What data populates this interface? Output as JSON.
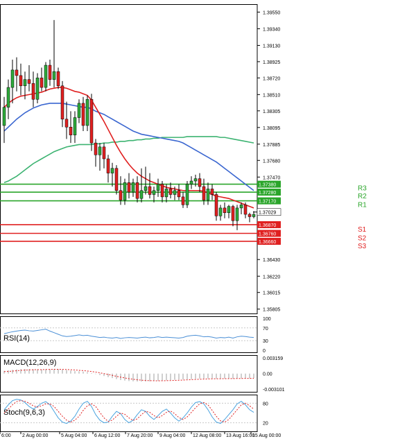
{
  "colors": {
    "bull": "#2eaa3a",
    "bear": "#e02020",
    "ma_fast": "#e02020",
    "ma_mid": "#3a66d0",
    "ma_slow": "#3cb371",
    "resistance": "#2aa52a",
    "support": "#e02020",
    "rsi": "#4a8fd6",
    "macd_hist": "#bfbfbf",
    "macd_signal": "#e02020",
    "stoch_main": "#4aa3df",
    "stoch_signal": "#e02020",
    "current_box": "#ffffff"
  },
  "chart_data": [
    {
      "type": "candlestick",
      "ylim": [
        1.3575,
        1.3965
      ],
      "y_ticks": [
        "1.39550",
        "1.39340",
        "1.39130",
        "1.38925",
        "1.38720",
        "1.38510",
        "1.38305",
        "1.38095",
        "1.37885",
        "1.37680",
        "1.37470",
        "1.37265",
        "1.37055",
        "1.36850",
        "1.36640",
        "1.36430",
        "1.36220",
        "1.36015",
        "1.35805"
      ],
      "x_ticks": [
        "6:00",
        "2 Aug 00:00",
        "5 Aug 04:00",
        "6 Aug 12:00",
        "7 Aug 20:00",
        "9 Aug 04:00",
        "12 Aug 08:00",
        "13 Aug 16:00",
        "15 Aug 00:00"
      ],
      "candles": [
        [
          1.3812,
          1.3848,
          1.379,
          1.3835
        ],
        [
          1.3835,
          1.387,
          1.382,
          1.386
        ],
        [
          1.386,
          1.3895,
          1.384,
          1.3882
        ],
        [
          1.3882,
          1.3898,
          1.3855,
          1.3875
        ],
        [
          1.3875,
          1.389,
          1.385,
          1.3862
        ],
        [
          1.3862,
          1.388,
          1.3845,
          1.387
        ],
        [
          1.387,
          1.3888,
          1.3855,
          1.3865
        ],
        [
          1.3865,
          1.388,
          1.3835,
          1.3845
        ],
        [
          1.3845,
          1.3878,
          1.384,
          1.3872
        ],
        [
          1.3872,
          1.3885,
          1.3855,
          1.386
        ],
        [
          1.386,
          1.3892,
          1.3855,
          1.3888
        ],
        [
          1.3888,
          1.3895,
          1.3862,
          1.387
        ],
        [
          1.387,
          1.3945,
          1.386,
          1.388
        ],
        [
          1.388,
          1.3885,
          1.3858,
          1.3862
        ],
        [
          1.3862,
          1.3868,
          1.381,
          1.382
        ],
        [
          1.382,
          1.3842,
          1.3795,
          1.381
        ],
        [
          1.381,
          1.383,
          1.379,
          1.38
        ],
        [
          1.38,
          1.383,
          1.379,
          1.3822
        ],
        [
          1.3822,
          1.3845,
          1.3815,
          1.384
        ],
        [
          1.384,
          1.3848,
          1.3805,
          1.3812
        ],
        [
          1.3812,
          1.385,
          1.3805,
          1.3845
        ],
        [
          1.3845,
          1.3852,
          1.378,
          1.379
        ],
        [
          1.379,
          1.3795,
          1.376,
          1.3775
        ],
        [
          1.3775,
          1.379,
          1.3755,
          1.3785
        ],
        [
          1.3785,
          1.379,
          1.3758,
          1.377
        ],
        [
          1.377,
          1.3775,
          1.374,
          1.3752
        ],
        [
          1.3752,
          1.3765,
          1.3735,
          1.3758
        ],
        [
          1.3758,
          1.3762,
          1.3725,
          1.373
        ],
        [
          1.373,
          1.3748,
          1.3712,
          1.3718
        ],
        [
          1.3718,
          1.3745,
          1.3712,
          1.374
        ],
        [
          1.374,
          1.3752,
          1.372,
          1.3728
        ],
        [
          1.3728,
          1.3745,
          1.3722,
          1.374
        ],
        [
          1.374,
          1.3748,
          1.3715,
          1.372
        ],
        [
          1.372,
          1.3758,
          1.3715,
          1.373
        ],
        [
          1.373,
          1.376,
          1.3725,
          1.3735
        ],
        [
          1.3735,
          1.3752,
          1.372,
          1.3725
        ],
        [
          1.3725,
          1.3735,
          1.3715,
          1.373
        ],
        [
          1.373,
          1.3745,
          1.3722,
          1.3738
        ],
        [
          1.3738,
          1.3742,
          1.3715,
          1.3722
        ],
        [
          1.3722,
          1.3738,
          1.3715,
          1.3732
        ],
        [
          1.3732,
          1.374,
          1.372,
          1.3725
        ],
        [
          1.3725,
          1.3735,
          1.3718,
          1.373
        ],
        [
          1.373,
          1.3738,
          1.3718,
          1.3722
        ],
        [
          1.3722,
          1.3728,
          1.3708,
          1.3712
        ],
        [
          1.3712,
          1.3742,
          1.3708,
          1.3738
        ],
        [
          1.3738,
          1.3748,
          1.3732,
          1.3742
        ],
        [
          1.3742,
          1.375,
          1.3735,
          1.3745
        ],
        [
          1.3745,
          1.3752,
          1.3728,
          1.3735
        ],
        [
          1.3735,
          1.3745,
          1.3712,
          1.3718
        ],
        [
          1.3718,
          1.374,
          1.3712,
          1.3732
        ],
        [
          1.3732,
          1.3738,
          1.3718,
          1.3725
        ],
        [
          1.3725,
          1.3728,
          1.3692,
          1.3698
        ],
        [
          1.3698,
          1.3712,
          1.3692,
          1.3708
        ],
        [
          1.3708,
          1.3715,
          1.3695,
          1.3702
        ],
        [
          1.3702,
          1.3712,
          1.3695,
          1.371
        ],
        [
          1.371,
          1.3712,
          1.3685,
          1.3692
        ],
        [
          1.3692,
          1.3712,
          1.368,
          1.3708
        ],
        [
          1.3708,
          1.3715,
          1.37,
          1.3712
        ],
        [
          1.3712,
          1.3715,
          1.3695,
          1.37
        ],
        [
          1.37,
          1.3702,
          1.369,
          1.3697
        ],
        [
          1.3697,
          1.3704,
          1.3695,
          1.37
        ]
      ],
      "ma_fast": [
        1.3835,
        1.384,
        1.3844,
        1.3847,
        1.3849,
        1.385,
        1.3851,
        1.3852,
        1.3853,
        1.3854,
        1.3856,
        1.3858,
        1.3859,
        1.386,
        1.386,
        1.3859,
        1.3857,
        1.3855,
        1.3854,
        1.3852,
        1.385,
        1.3844,
        1.3835,
        1.3826,
        1.3817,
        1.3807,
        1.3797,
        1.3787,
        1.3778,
        1.377,
        1.3763,
        1.3757,
        1.3752,
        1.3748,
        1.3745,
        1.3742,
        1.374,
        1.3738,
        1.3736,
        1.3734,
        1.3733,
        1.3732,
        1.3731,
        1.373,
        1.373,
        1.373,
        1.373,
        1.373,
        1.3729,
        1.3727,
        1.3725,
        1.3723,
        1.3722,
        1.3721,
        1.372,
        1.3718,
        1.3716,
        1.3714,
        1.3712,
        1.371,
        1.3708
      ],
      "ma_mid": [
        1.3805,
        1.381,
        1.3815,
        1.382,
        1.3824,
        1.3828,
        1.3831,
        1.3834,
        1.3836,
        1.3838,
        1.3839,
        1.384,
        1.384,
        1.384,
        1.384,
        1.3839,
        1.3838,
        1.3837,
        1.3836,
        1.3835,
        1.3835,
        1.3833,
        1.383,
        1.3828,
        1.3826,
        1.3823,
        1.382,
        1.3817,
        1.3814,
        1.3811,
        1.3808,
        1.3805,
        1.3803,
        1.3801,
        1.38,
        1.3799,
        1.3798,
        1.3797,
        1.3796,
        1.3795,
        1.3794,
        1.3793,
        1.3792,
        1.379,
        1.3787,
        1.3784,
        1.3781,
        1.3778,
        1.3775,
        1.3772,
        1.3769,
        1.3766,
        1.3762,
        1.3758,
        1.3754,
        1.375,
        1.3746,
        1.3742,
        1.3738,
        1.3734,
        1.373
      ],
      "ma_slow": [
        1.374,
        1.3742,
        1.3745,
        1.3748,
        1.3752,
        1.3756,
        1.376,
        1.3764,
        1.3767,
        1.377,
        1.3773,
        1.3776,
        1.3779,
        1.3781,
        1.3783,
        1.3785,
        1.3786,
        1.3787,
        1.3788,
        1.3788,
        1.3788,
        1.3788,
        1.3789,
        1.3789,
        1.379,
        1.379,
        1.3791,
        1.3791,
        1.3792,
        1.3792,
        1.3793,
        1.3793,
        1.3794,
        1.3794,
        1.3795,
        1.3795,
        1.3796,
        1.3796,
        1.3797,
        1.3797,
        1.3797,
        1.3797,
        1.3797,
        1.3797,
        1.3798,
        1.3798,
        1.3798,
        1.3798,
        1.3798,
        1.3798,
        1.3798,
        1.3798,
        1.3797,
        1.3797,
        1.3796,
        1.3795,
        1.3794,
        1.3793,
        1.3792,
        1.3791,
        1.379
      ],
      "ma_fast_start": 0,
      "ma_mid_start": 0,
      "ma_slow_start": 0,
      "levels": [
        {
          "label": "R3",
          "value": 1.3738,
          "tag": "1.37380",
          "kind": "resistance"
        },
        {
          "label": "R2",
          "value": 1.3728,
          "tag": "1.37280",
          "kind": "resistance"
        },
        {
          "label": "R1",
          "value": 1.3717,
          "tag": "1.37170",
          "kind": "resistance"
        },
        {
          "label": "S1",
          "value": 1.3687,
          "tag": "1.36870",
          "kind": "support"
        },
        {
          "label": "S2",
          "value": 1.3676,
          "tag": "1.36760",
          "kind": "support"
        },
        {
          "label": "S3",
          "value": 1.3666,
          "tag": "1.36660",
          "kind": "support"
        }
      ],
      "current_price": 1.37029,
      "current_tag": "1.37029"
    },
    {
      "type": "line",
      "title": "RSI(14)",
      "ylim": [
        0,
        100
      ],
      "y_ticks": [
        "100",
        "70",
        "30",
        "0"
      ],
      "y_tick_values": [
        100,
        70,
        30,
        0
      ],
      "values": [
        52,
        55,
        58,
        60,
        62,
        63,
        61,
        60,
        62,
        64,
        66,
        60,
        55,
        50,
        45,
        43,
        44,
        46,
        48,
        46,
        47,
        44,
        42,
        40,
        41,
        39,
        38,
        40,
        37,
        39,
        40,
        39,
        38,
        40,
        41,
        39,
        40,
        42,
        40,
        41,
        40,
        39,
        38,
        40,
        44,
        46,
        47,
        45,
        42,
        43,
        41,
        38,
        40,
        39,
        41,
        38,
        42,
        44,
        43,
        41,
        40
      ]
    },
    {
      "type": "bar",
      "title": "MACD(12,26,9)",
      "ylim": [
        -0.00325,
        0.0033
      ],
      "y_ticks": [
        "0.003159",
        "0.00",
        "-0.003101"
      ],
      "y_tick_values": [
        0.003159,
        0.0,
        -0.003101
      ],
      "histogram": [
        0.00055,
        0.00065,
        0.00075,
        0.00085,
        0.0009,
        0.00092,
        0.0009,
        0.00088,
        0.00086,
        0.00085,
        0.00088,
        0.0009,
        0.00092,
        0.0009,
        0.0008,
        0.0007,
        0.0006,
        0.0005,
        0.00045,
        0.0004,
        0.0003,
        0.0001,
        -0.0001,
        -0.0003,
        -0.0005,
        -0.0007,
        -0.0009,
        -0.0011,
        -0.0013,
        -0.0014,
        -0.0015,
        -0.00155,
        -0.0016,
        -0.0016,
        -0.00158,
        -0.00155,
        -0.0015,
        -0.00145,
        -0.0014,
        -0.00135,
        -0.0013,
        -0.00125,
        -0.0012,
        -0.00118,
        -0.00115,
        -0.0011,
        -0.00105,
        -0.001,
        -0.001,
        -0.00098,
        -0.00098,
        -0.001,
        -0.001,
        -0.001,
        -0.001,
        -0.001,
        -0.00095,
        -0.00095,
        -0.00095,
        -0.00095,
        -0.0009
      ],
      "signal": [
        0.0004,
        0.00045,
        0.0005,
        0.00058,
        0.00065,
        0.0007,
        0.00074,
        0.00077,
        0.00079,
        0.0008,
        0.00082,
        0.00084,
        0.00086,
        0.00087,
        0.00085,
        0.00082,
        0.00078,
        0.00072,
        0.00066,
        0.0006,
        0.00052,
        0.00042,
        0.0003,
        0.00016,
        0.0,
        -0.00018,
        -0.00036,
        -0.00055,
        -0.00072,
        -0.00088,
        -0.00102,
        -0.00114,
        -0.00124,
        -0.00132,
        -0.00138,
        -0.00142,
        -0.00144,
        -0.00145,
        -0.00144,
        -0.00142,
        -0.0014,
        -0.00137,
        -0.00134,
        -0.0013,
        -0.00126,
        -0.00122,
        -0.00118,
        -0.00114,
        -0.0011,
        -0.00107,
        -0.00105,
        -0.00104,
        -0.00103,
        -0.00102,
        -0.00101,
        -0.001,
        -0.00099,
        -0.00098,
        -0.00097,
        -0.00096,
        -0.00095
      ]
    },
    {
      "type": "line",
      "title": "Stoch(9,6,3)",
      "ylim": [
        0,
        100
      ],
      "y_ticks": [
        "80",
        "20"
      ],
      "y_tick_values": [
        80,
        20
      ],
      "main": [
        60,
        75,
        88,
        92,
        90,
        82,
        70,
        62,
        70,
        80,
        85,
        75,
        55,
        35,
        22,
        18,
        25,
        40,
        62,
        80,
        86,
        70,
        45,
        28,
        20,
        22,
        40,
        55,
        48,
        30,
        20,
        28,
        45,
        60,
        55,
        40,
        30,
        42,
        55,
        62,
        50,
        35,
        25,
        35,
        50,
        68,
        82,
        85,
        78,
        60,
        38,
        22,
        18,
        30,
        45,
        60,
        78,
        86,
        75,
        60,
        52
      ],
      "signal": [
        50,
        62,
        75,
        85,
        88,
        86,
        80,
        72,
        68,
        72,
        78,
        78,
        70,
        55,
        40,
        28,
        22,
        28,
        40,
        58,
        72,
        78,
        70,
        52,
        35,
        24,
        28,
        40,
        50,
        46,
        35,
        27,
        32,
        45,
        55,
        52,
        42,
        35,
        42,
        52,
        56,
        48,
        36,
        30,
        38,
        52,
        66,
        78,
        82,
        75,
        58,
        40,
        26,
        22,
        30,
        45,
        60,
        75,
        80,
        72,
        62
      ]
    }
  ]
}
